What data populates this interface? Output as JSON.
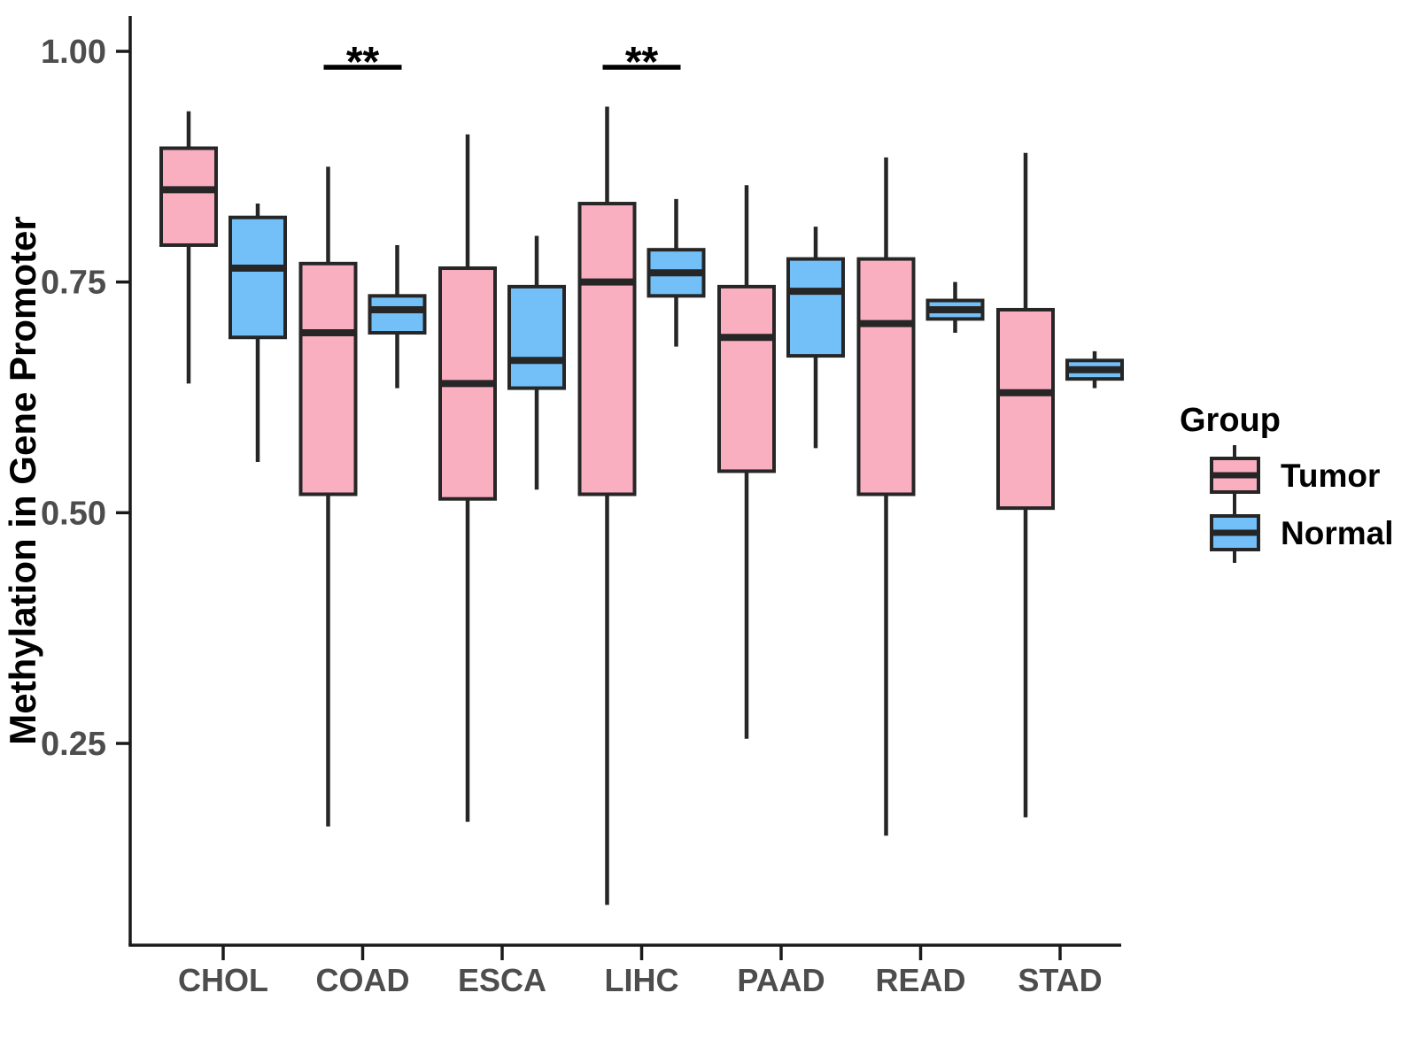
{
  "chart_data": {
    "type": "boxplot",
    "title": "",
    "xlabel": "",
    "ylabel": "Methylation in Gene Promoter",
    "categories": [
      "CHOL",
      "COAD",
      "ESCA",
      "LIHC",
      "PAAD",
      "READ",
      "STAD"
    ],
    "yticks": [
      1.0,
      0.75,
      0.5,
      0.25
    ],
    "ytick_labels": [
      "1.00",
      "0.75",
      "0.50",
      "0.25"
    ],
    "ylim": [
      0.03,
      1.04
    ],
    "grid": false,
    "legend": {
      "title": "Group",
      "position": "right",
      "entries": [
        {
          "label": "Tumor",
          "color": "#FAAFC1"
        },
        {
          "label": "Normal",
          "color": "#73BFF7"
        }
      ]
    },
    "series": [
      {
        "name": "Tumor",
        "color": "#FAAFC1",
        "boxes": [
          {
            "category": "CHOL",
            "whisker_low": 0.64,
            "q1": 0.79,
            "median": 0.85,
            "q3": 0.895,
            "whisker_high": 0.935
          },
          {
            "category": "COAD",
            "whisker_low": 0.16,
            "q1": 0.52,
            "median": 0.695,
            "q3": 0.77,
            "whisker_high": 0.875
          },
          {
            "category": "ESCA",
            "whisker_low": 0.165,
            "q1": 0.515,
            "median": 0.64,
            "q3": 0.765,
            "whisker_high": 0.91
          },
          {
            "category": "LIHC",
            "whisker_low": 0.075,
            "q1": 0.52,
            "median": 0.75,
            "q3": 0.835,
            "whisker_high": 0.94
          },
          {
            "category": "PAAD",
            "whisker_low": 0.255,
            "q1": 0.545,
            "median": 0.69,
            "q3": 0.745,
            "whisker_high": 0.855
          },
          {
            "category": "READ",
            "whisker_low": 0.15,
            "q1": 0.52,
            "median": 0.705,
            "q3": 0.775,
            "whisker_high": 0.885
          },
          {
            "category": "STAD",
            "whisker_low": 0.17,
            "q1": 0.505,
            "median": 0.63,
            "q3": 0.72,
            "whisker_high": 0.89
          }
        ]
      },
      {
        "name": "Normal",
        "color": "#73BFF7",
        "boxes": [
          {
            "category": "CHOL",
            "whisker_low": 0.555,
            "q1": 0.69,
            "median": 0.765,
            "q3": 0.82,
            "whisker_high": 0.835
          },
          {
            "category": "COAD",
            "whisker_low": 0.635,
            "q1": 0.695,
            "median": 0.72,
            "q3": 0.735,
            "whisker_high": 0.79
          },
          {
            "category": "ESCA",
            "whisker_low": 0.525,
            "q1": 0.635,
            "median": 0.665,
            "q3": 0.745,
            "whisker_high": 0.8
          },
          {
            "category": "LIHC",
            "whisker_low": 0.68,
            "q1": 0.735,
            "median": 0.76,
            "q3": 0.785,
            "whisker_high": 0.84
          },
          {
            "category": "PAAD",
            "whisker_low": 0.57,
            "q1": 0.67,
            "median": 0.74,
            "q3": 0.775,
            "whisker_high": 0.81
          },
          {
            "category": "READ",
            "whisker_low": 0.695,
            "q1": 0.71,
            "median": 0.72,
            "q3": 0.73,
            "whisker_high": 0.75
          },
          {
            "category": "STAD",
            "whisker_low": 0.635,
            "q1": 0.645,
            "median": 0.655,
            "q3": 0.665,
            "whisker_high": 0.675
          }
        ]
      }
    ],
    "annotations": [
      {
        "category": "COAD",
        "label": "**"
      },
      {
        "category": "LIHC",
        "label": "**"
      }
    ],
    "colors": {
      "box_border": "#262626",
      "axis": "#1a1a1a",
      "tick_label": "#4d4d4d",
      "axis_title": "#000000",
      "background": "#ffffff"
    }
  }
}
